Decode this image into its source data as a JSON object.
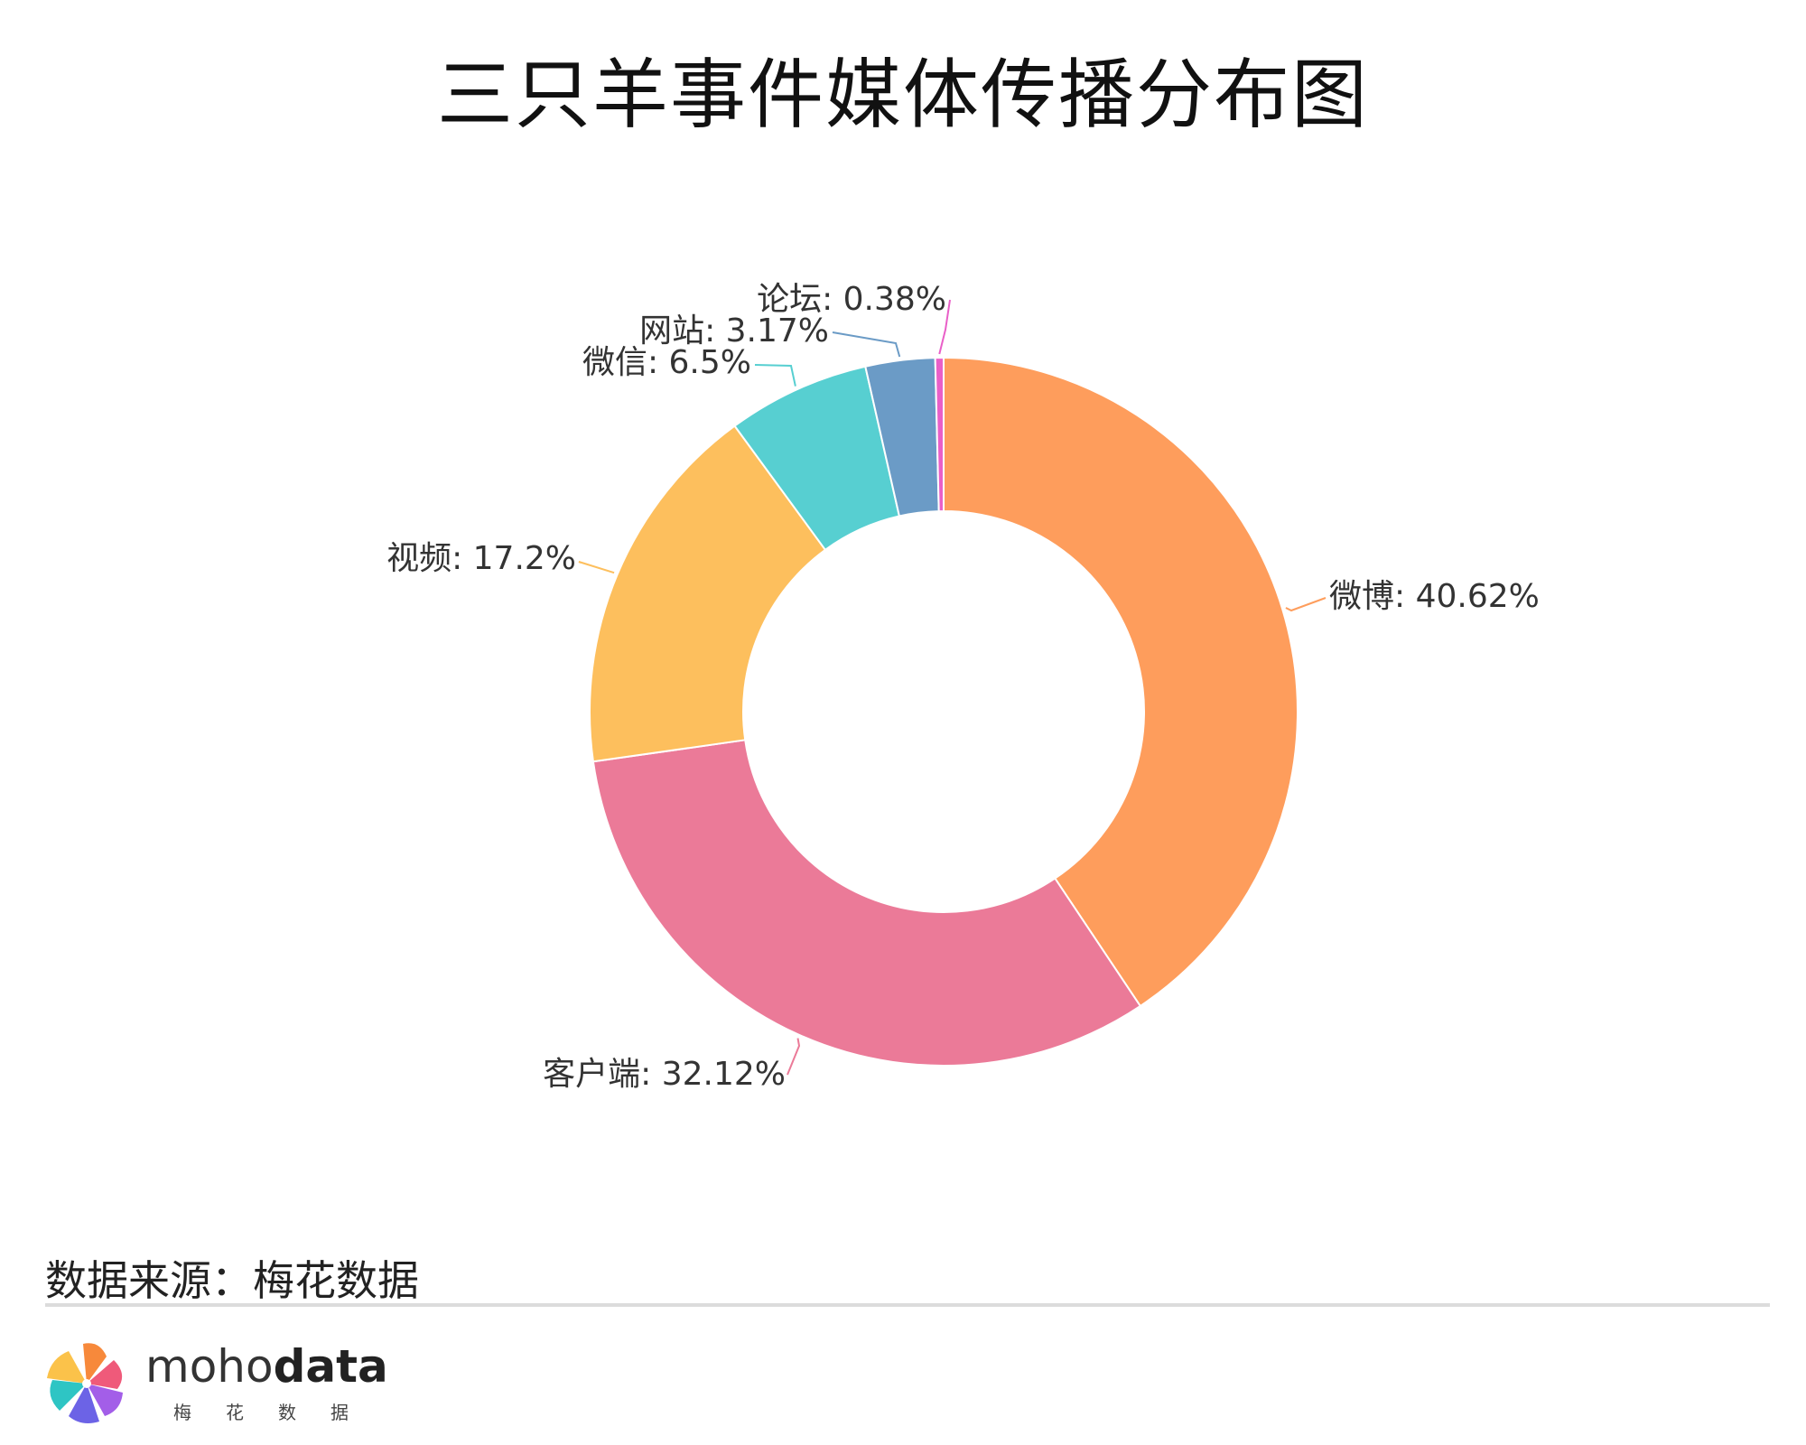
{
  "title": "三只羊事件媒体传播分布图",
  "source": "数据来源：梅花数据",
  "brand": {
    "part1": "moho",
    "part2": "data",
    "cn": "梅花数据"
  },
  "chart_data": {
    "type": "pie",
    "donut": true,
    "title": "三只羊事件媒体传播分布图",
    "slices": [
      {
        "label": "微博",
        "value": 40.62,
        "display": "40.62%",
        "color": "#fe9d5c"
      },
      {
        "label": "客户端",
        "value": 32.12,
        "display": "32.12%",
        "color": "#eb7a98"
      },
      {
        "label": "视频",
        "value": 17.2,
        "display": "17.2%",
        "color": "#fdbf5d"
      },
      {
        "label": "微信",
        "value": 6.5,
        "display": "6.5%",
        "color": "#57cfd1"
      },
      {
        "label": "网站",
        "value": 3.17,
        "display": "3.17%",
        "color": "#6b9bc6"
      },
      {
        "label": "论坛",
        "value": 0.38,
        "display": "0.38%",
        "color": "#e95fc8"
      }
    ]
  }
}
